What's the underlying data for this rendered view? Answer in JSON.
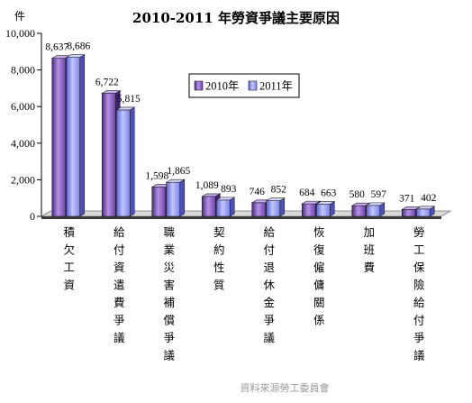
{
  "chart_data": {
    "type": "bar",
    "title": "2010-2011 年勞資爭議主要原因",
    "ylabel": "件",
    "ylim": [
      0,
      10000
    ],
    "yticks": [
      "0",
      "2,000",
      "4,000",
      "6,000",
      "8,000",
      "10,000"
    ],
    "legend_position": "top-right",
    "categories": [
      "積欠工資",
      "給付資遣費爭議",
      "職業災害補償爭議",
      "契約性質",
      "給付退休金爭議",
      "恢復僱傭關係",
      "加班費",
      "勞工保險給付爭議"
    ],
    "series": [
      {
        "name": "2010年",
        "color": "#8a5cc6",
        "values": [
          8637,
          6722,
          1598,
          1089,
          746,
          684,
          580,
          371
        ],
        "labels": [
          "8,637",
          "6,722",
          "1,598",
          "1,089",
          "746",
          "684",
          "580",
          "371"
        ]
      },
      {
        "name": "2011年",
        "color": "#8f95f2",
        "values": [
          8686,
          5815,
          1865,
          893,
          852,
          663,
          597,
          402
        ],
        "labels": [
          "8,686",
          "5,815",
          "1,865",
          "893",
          "852",
          "663",
          "597",
          "402"
        ]
      }
    ],
    "grid": false
  },
  "footer": {
    "source": "資料來源勞工委員會"
  }
}
